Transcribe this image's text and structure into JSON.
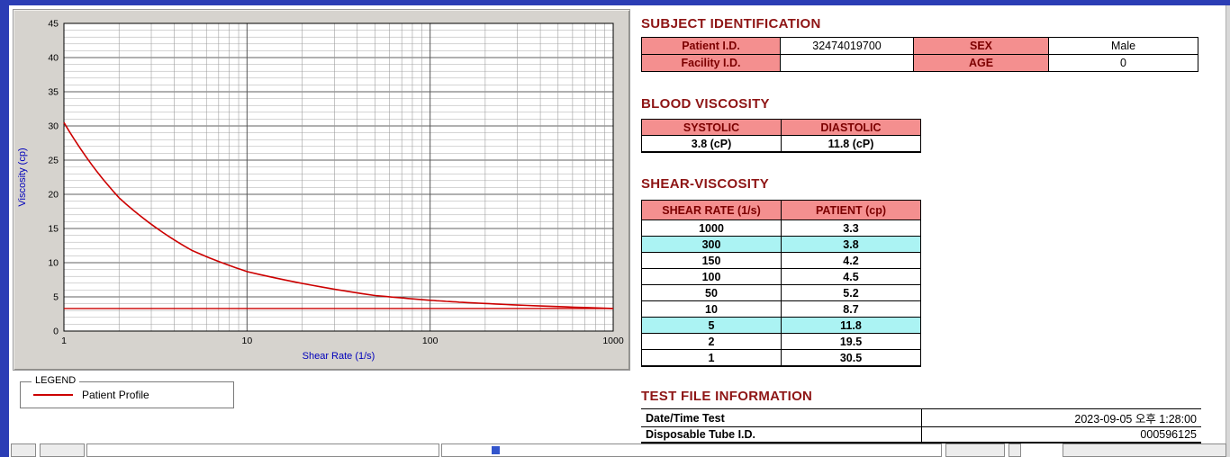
{
  "colors": {
    "accent_title": "#8e1515",
    "header_pink": "#f48f8f",
    "highlight_cyan": "#abf3f3",
    "curve_red": "#cc0000",
    "frame_blue": "#2b3db5",
    "axis_label_blue": "#0000bb"
  },
  "chart_data": {
    "type": "line",
    "title": "",
    "xlabel": "Shear Rate (1/s)",
    "ylabel": "Viscosity (cp)",
    "xscale": "log",
    "xlim": [
      1,
      1000
    ],
    "ylim": [
      0,
      45
    ],
    "xticks": [
      1,
      10,
      100,
      1000
    ],
    "yticks": [
      0,
      5,
      10,
      15,
      20,
      25,
      30,
      35,
      40,
      45
    ],
    "grid": "on",
    "x": [
      1,
      2,
      5,
      10,
      50,
      100,
      150,
      300,
      1000
    ],
    "series": [
      {
        "name": "Patient Profile",
        "values": [
          30.5,
          19.5,
          11.8,
          8.7,
          5.2,
          4.5,
          4.2,
          3.8,
          3.3
        ]
      }
    ],
    "baseline": 3.3,
    "line_color": "#cc0000"
  },
  "legend": {
    "title": "LEGEND",
    "entries": [
      {
        "label": "Patient Profile",
        "color": "#cc0000"
      }
    ]
  },
  "subject": {
    "title": "SUBJECT IDENTIFICATION",
    "rows": [
      {
        "label1": "Patient I.D.",
        "value1": "32474019700",
        "label2": "SEX",
        "value2": "Male"
      },
      {
        "label1": "Facility I.D.",
        "value1": "",
        "label2": "AGE",
        "value2": "0"
      }
    ]
  },
  "blood_viscosity": {
    "title": "BLOOD VISCOSITY",
    "headers": [
      "SYSTOLIC",
      "DIASTOLIC"
    ],
    "values": [
      "3.8 (cP)",
      "11.8 (cP)"
    ]
  },
  "shear_viscosity": {
    "title": "SHEAR-VISCOSITY",
    "headers": [
      "SHEAR RATE (1/s)",
      "PATIENT (cp)"
    ],
    "rows": [
      {
        "rate": "1000",
        "value": "3.3",
        "highlight": false
      },
      {
        "rate": "300",
        "value": "3.8",
        "highlight": true
      },
      {
        "rate": "150",
        "value": "4.2",
        "highlight": false
      },
      {
        "rate": "100",
        "value": "4.5",
        "highlight": false
      },
      {
        "rate": "50",
        "value": "5.2",
        "highlight": false
      },
      {
        "rate": "10",
        "value": "8.7",
        "highlight": false
      },
      {
        "rate": "5",
        "value": "11.8",
        "highlight": true
      },
      {
        "rate": "2",
        "value": "19.5",
        "highlight": false
      },
      {
        "rate": "1",
        "value": "30.5",
        "highlight": false
      }
    ]
  },
  "test_file": {
    "title": "TEST FILE INFORMATION",
    "rows": [
      {
        "label": "Date/Time Test",
        "value": "2023-09-05   오후 1:28:00"
      },
      {
        "label": "Disposable Tube I.D.",
        "value": "000596125"
      }
    ]
  }
}
